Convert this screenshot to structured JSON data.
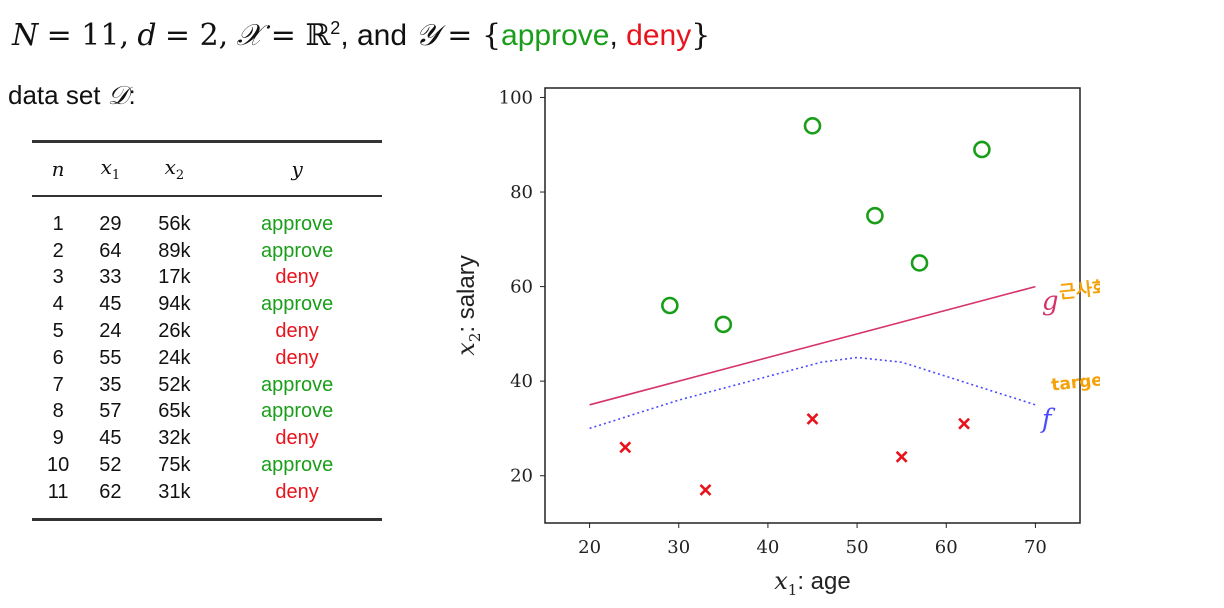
{
  "header": {
    "N_sym": "N",
    "N_val": "= 11,",
    "d_sym": "d",
    "d_val": "= 2,",
    "X_sym": "𝒳",
    "X_val": "= ℝ",
    "X_exp": "2",
    "and": ", and",
    "Y_sym": "𝒴",
    "Y_eq": "= {",
    "approve": "approve",
    "comma": ",",
    "deny": "deny",
    "close": "}"
  },
  "dataset_label": {
    "text": "data set ",
    "sym": "𝒟",
    "colon": ":"
  },
  "table": {
    "headers": {
      "n": "n",
      "x1_base": "x",
      "x1_sub": "1",
      "x2_base": "x",
      "x2_sub": "2",
      "y": "y"
    },
    "rows": [
      {
        "n": "1",
        "x1": "29",
        "x2": "56k",
        "y": "approve"
      },
      {
        "n": "2",
        "x1": "64",
        "x2": "89k",
        "y": "approve"
      },
      {
        "n": "3",
        "x1": "33",
        "x2": "17k",
        "y": "deny"
      },
      {
        "n": "4",
        "x1": "45",
        "x2": "94k",
        "y": "approve"
      },
      {
        "n": "5",
        "x1": "24",
        "x2": "26k",
        "y": "deny"
      },
      {
        "n": "6",
        "x1": "55",
        "x2": "24k",
        "y": "deny"
      },
      {
        "n": "7",
        "x1": "35",
        "x2": "52k",
        "y": "approve"
      },
      {
        "n": "8",
        "x1": "57",
        "x2": "65k",
        "y": "approve"
      },
      {
        "n": "9",
        "x1": "45",
        "x2": "32k",
        "y": "deny"
      },
      {
        "n": "10",
        "x1": "52",
        "x2": "75k",
        "y": "approve"
      },
      {
        "n": "11",
        "x1": "62",
        "x2": "31k",
        "y": "deny"
      }
    ]
  },
  "colors": {
    "approve": "#1a9e1a",
    "deny": "#e8131c",
    "g_line": "#d6336c",
    "f_line": "#4b4bff",
    "annotation": "#f5a20a"
  },
  "chart_data": {
    "type": "scatter",
    "title": "",
    "xlabel_base": "x",
    "xlabel_sub": "1",
    "xlabel_rest": ": age",
    "ylabel_base": "x",
    "ylabel_sub": "2",
    "ylabel_rest": ": salary",
    "xlim": [
      15,
      75
    ],
    "ylim": [
      10,
      102
    ],
    "xticks": [
      20,
      30,
      40,
      50,
      60,
      70
    ],
    "yticks": [
      20,
      40,
      60,
      80,
      100
    ],
    "grid": false,
    "series": [
      {
        "name": "approve",
        "marker": "circle",
        "points": [
          [
            29,
            56
          ],
          [
            64,
            89
          ],
          [
            45,
            94
          ],
          [
            35,
            52
          ],
          [
            57,
            65
          ],
          [
            52,
            75
          ]
        ]
      },
      {
        "name": "deny",
        "marker": "x",
        "points": [
          [
            33,
            17
          ],
          [
            24,
            26
          ],
          [
            55,
            24
          ],
          [
            45,
            32
          ],
          [
            62,
            31
          ]
        ]
      }
    ],
    "lines": [
      {
        "name": "g",
        "style": "solid",
        "points": [
          [
            20,
            35
          ],
          [
            70,
            60
          ]
        ]
      },
      {
        "name": "f",
        "style": "dotted",
        "points": [
          [
            20,
            30
          ],
          [
            30,
            36
          ],
          [
            40,
            41
          ],
          [
            46,
            44
          ],
          [
            50,
            45
          ],
          [
            55,
            44
          ],
          [
            60,
            41
          ],
          [
            65,
            38
          ],
          [
            70,
            35
          ]
        ]
      }
    ],
    "annotations": [
      {
        "label": "g",
        "x": 70.5,
        "y": 56
      },
      {
        "label": "f",
        "x": 70.5,
        "y": 31
      }
    ],
    "handwritten_notes": [
      "근사화",
      "target, 근데 모름"
    ]
  }
}
